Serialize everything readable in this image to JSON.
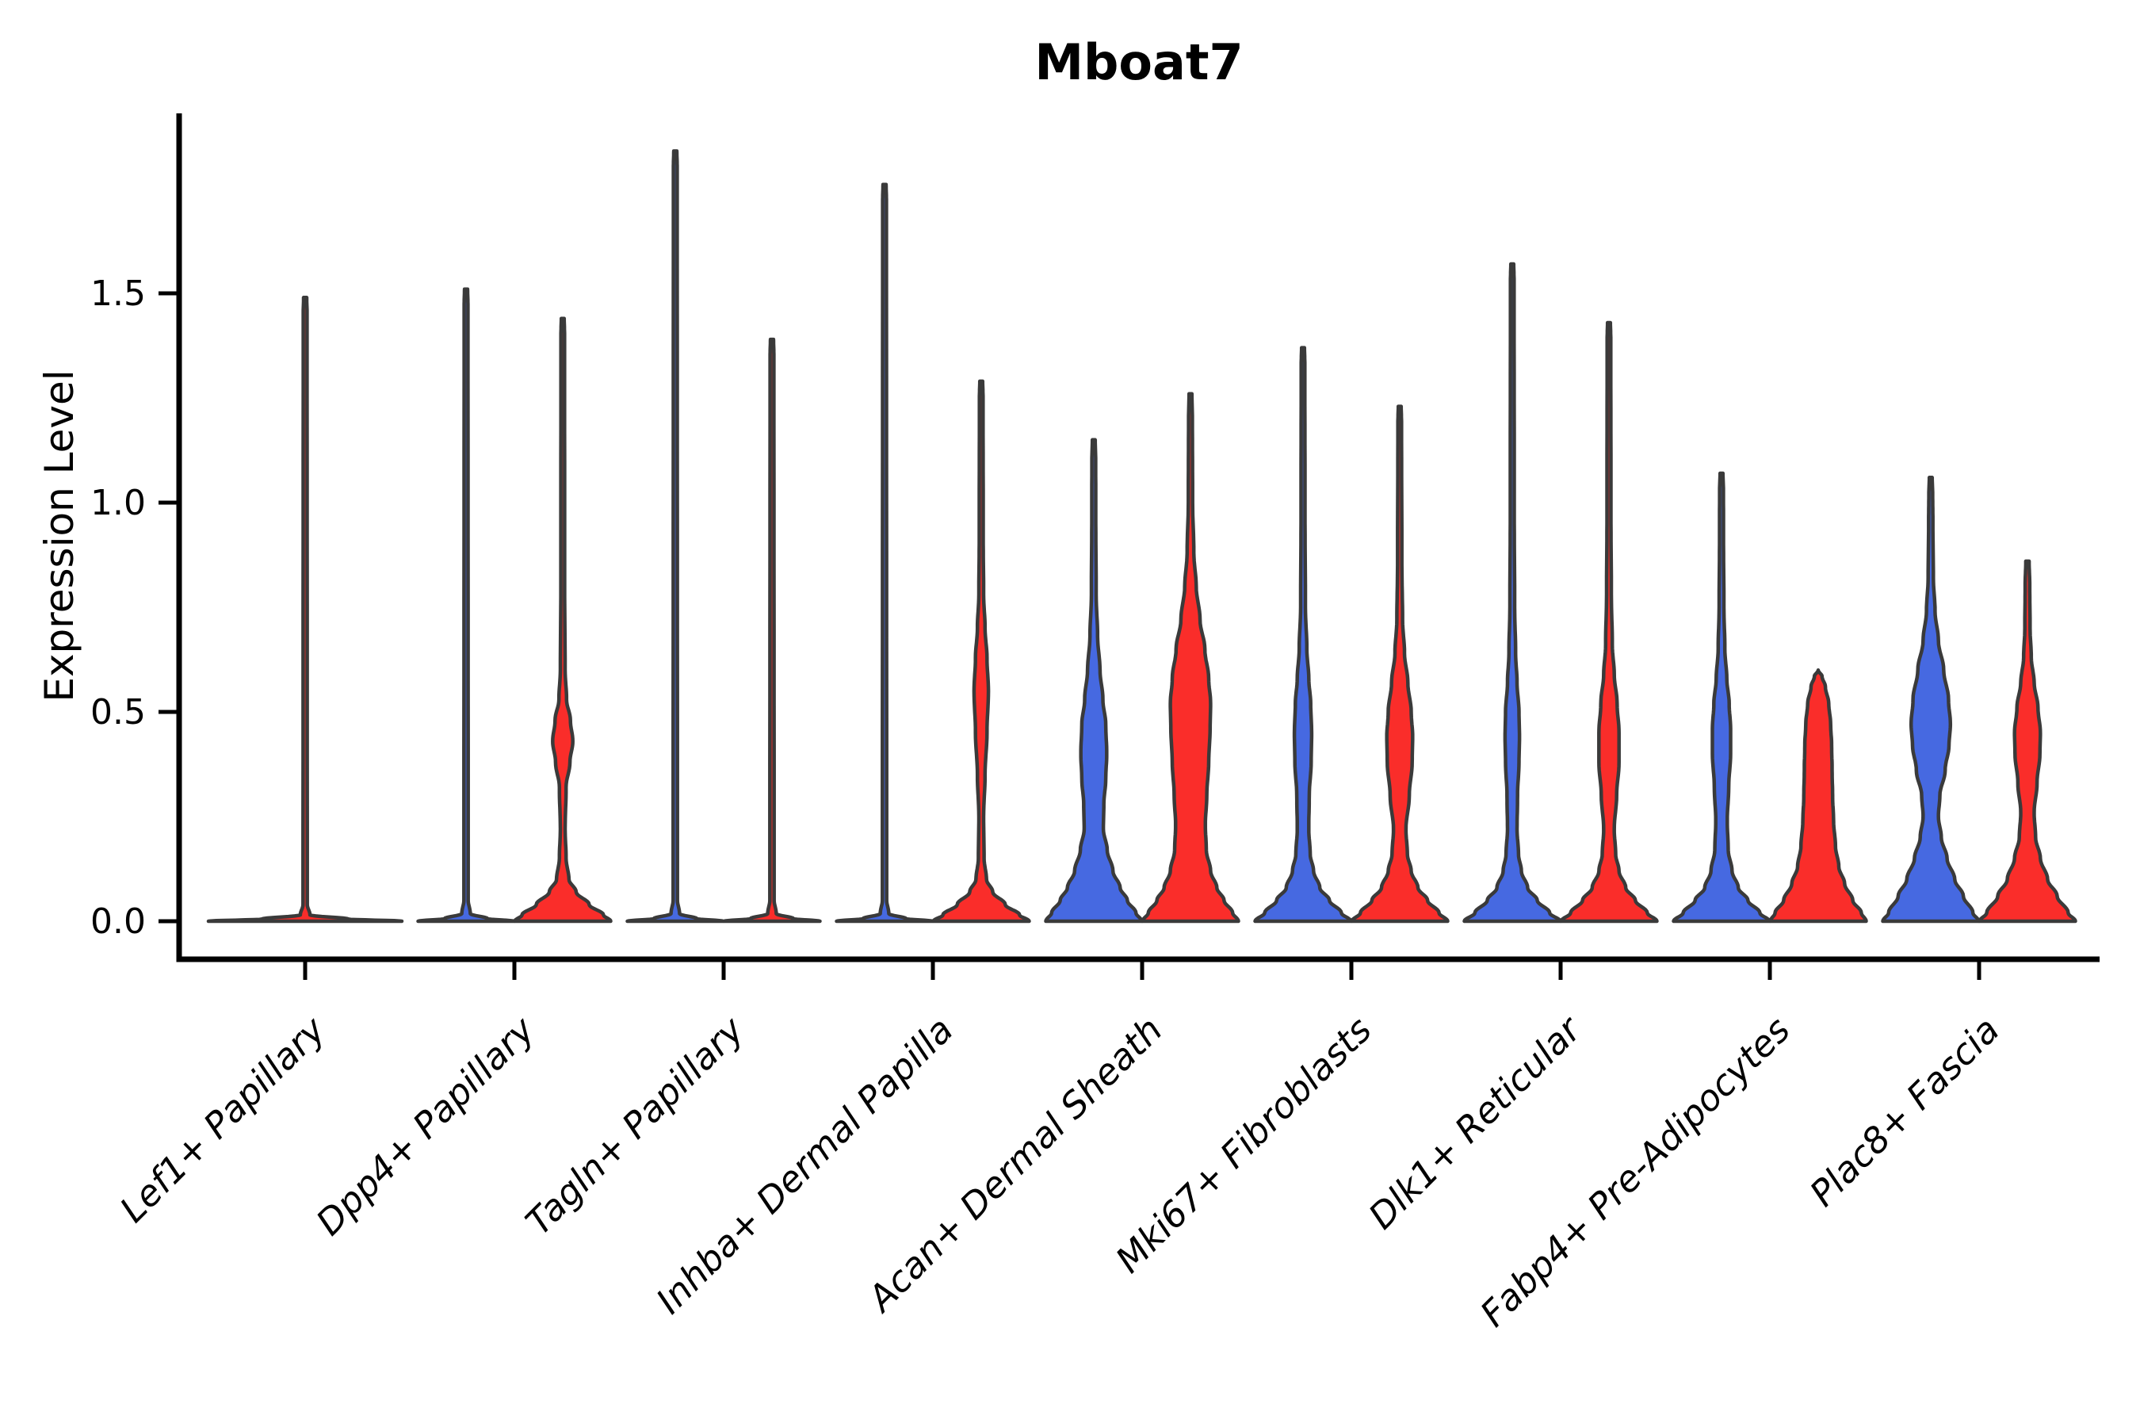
{
  "title": "Mboat7",
  "y_axis": {
    "label": "Expression Level"
  },
  "colors": {
    "blue": "#4669E1",
    "red": "#FA2D2A",
    "outline": "#3A3A3A",
    "axis": "#000000",
    "background": "#FFFFFF"
  },
  "chart_data": {
    "type": "violin",
    "title": "Mboat7",
    "xlabel": "",
    "ylabel": "Expression Level",
    "ylim": [
      0,
      1.93
    ],
    "yticks": [
      "0.0",
      "0.5",
      "1.0",
      "1.5"
    ],
    "ytick_values": [
      0.0,
      0.5,
      1.0,
      1.5
    ],
    "grid": false,
    "legend": "none",
    "split": "two violins per category (left=blue, right=red), dodged side by side",
    "categories": [
      "Lef1+ Papillary",
      "Dpp4+ Papillary",
      "Tagln+ Papillary",
      "Inhba+ Dermal Papilla",
      "Acan+ Dermal Sheath",
      "Mki67+ Fibroblasts",
      "Dlk1+ Reticular",
      "Fabp4+ Pre-Adipocytes",
      "Plac8+ Fascia"
    ],
    "violins": [
      {
        "category": "Lef1+ Papillary",
        "position": "full",
        "color_key": "red",
        "max_value": 1.49,
        "profile": [
          [
            0,
            1.0
          ],
          [
            0.005,
            0.45
          ],
          [
            0.015,
            0.05
          ],
          [
            0.04,
            0.022
          ],
          [
            1.45,
            0.02
          ],
          [
            1.49,
            0.016
          ]
        ]
      },
      {
        "category": "Dpp4+ Papillary",
        "position": "left",
        "color_key": "blue",
        "max_value": 1.51,
        "profile": [
          [
            0,
            1.0
          ],
          [
            0.006,
            0.45
          ],
          [
            0.018,
            0.09
          ],
          [
            0.05,
            0.045
          ],
          [
            1.47,
            0.04
          ],
          [
            1.51,
            0.032
          ]
        ]
      },
      {
        "category": "Dpp4+ Papillary",
        "position": "right",
        "color_key": "red",
        "max_value": 1.44,
        "profile": [
          [
            0,
            1.0
          ],
          [
            0.015,
            0.85
          ],
          [
            0.04,
            0.55
          ],
          [
            0.07,
            0.28
          ],
          [
            0.1,
            0.13
          ],
          [
            0.15,
            0.07
          ],
          [
            0.22,
            0.05
          ],
          [
            0.32,
            0.07
          ],
          [
            0.38,
            0.15
          ],
          [
            0.43,
            0.21
          ],
          [
            0.48,
            0.16
          ],
          [
            0.53,
            0.08
          ],
          [
            0.6,
            0.05
          ],
          [
            0.8,
            0.04
          ],
          [
            1.4,
            0.038
          ],
          [
            1.44,
            0.03
          ]
        ]
      },
      {
        "category": "Tagln+ Papillary",
        "position": "left",
        "color_key": "blue",
        "max_value": 1.84,
        "profile": [
          [
            0,
            1.0
          ],
          [
            0.006,
            0.45
          ],
          [
            0.018,
            0.09
          ],
          [
            0.05,
            0.045
          ],
          [
            1.8,
            0.04
          ],
          [
            1.84,
            0.032
          ]
        ]
      },
      {
        "category": "Tagln+ Papillary",
        "position": "right",
        "color_key": "red",
        "max_value": 1.39,
        "profile": [
          [
            0,
            1.0
          ],
          [
            0.006,
            0.45
          ],
          [
            0.018,
            0.09
          ],
          [
            0.05,
            0.045
          ],
          [
            1.35,
            0.04
          ],
          [
            1.39,
            0.032
          ]
        ]
      },
      {
        "category": "Inhba+ Dermal Papilla",
        "position": "left",
        "color_key": "blue",
        "max_value": 1.76,
        "profile": [
          [
            0,
            1.0
          ],
          [
            0.006,
            0.45
          ],
          [
            0.018,
            0.09
          ],
          [
            0.05,
            0.045
          ],
          [
            1.72,
            0.04
          ],
          [
            1.76,
            0.032
          ]
        ]
      },
      {
        "category": "Inhba+ Dermal Papilla",
        "position": "right",
        "color_key": "red",
        "max_value": 1.29,
        "profile": [
          [
            0,
            1.0
          ],
          [
            0.015,
            0.8
          ],
          [
            0.04,
            0.5
          ],
          [
            0.07,
            0.24
          ],
          [
            0.1,
            0.11
          ],
          [
            0.15,
            0.06
          ],
          [
            0.25,
            0.05
          ],
          [
            0.35,
            0.08
          ],
          [
            0.45,
            0.12
          ],
          [
            0.55,
            0.15
          ],
          [
            0.63,
            0.12
          ],
          [
            0.7,
            0.08
          ],
          [
            0.78,
            0.05
          ],
          [
            0.9,
            0.042
          ],
          [
            1.25,
            0.038
          ],
          [
            1.29,
            0.03
          ]
        ]
      },
      {
        "category": "Acan+ Dermal Sheath",
        "position": "left",
        "color_key": "blue",
        "max_value": 1.15,
        "profile": [
          [
            0,
            1.0
          ],
          [
            0.02,
            0.88
          ],
          [
            0.05,
            0.7
          ],
          [
            0.08,
            0.55
          ],
          [
            0.12,
            0.4
          ],
          [
            0.17,
            0.28
          ],
          [
            0.22,
            0.2
          ],
          [
            0.28,
            0.21
          ],
          [
            0.34,
            0.25
          ],
          [
            0.4,
            0.27
          ],
          [
            0.47,
            0.25
          ],
          [
            0.53,
            0.19
          ],
          [
            0.6,
            0.13
          ],
          [
            0.68,
            0.08
          ],
          [
            0.78,
            0.05
          ],
          [
            0.95,
            0.042
          ],
          [
            1.1,
            0.04
          ],
          [
            1.15,
            0.03
          ]
        ]
      },
      {
        "category": "Acan+ Dermal Sheath",
        "position": "right",
        "color_key": "red",
        "max_value": 1.26,
        "profile": [
          [
            0,
            1.0
          ],
          [
            0.02,
            0.88
          ],
          [
            0.05,
            0.7
          ],
          [
            0.08,
            0.55
          ],
          [
            0.12,
            0.42
          ],
          [
            0.17,
            0.33
          ],
          [
            0.23,
            0.31
          ],
          [
            0.3,
            0.34
          ],
          [
            0.38,
            0.38
          ],
          [
            0.46,
            0.41
          ],
          [
            0.52,
            0.42
          ],
          [
            0.58,
            0.38
          ],
          [
            0.65,
            0.3
          ],
          [
            0.72,
            0.2
          ],
          [
            0.8,
            0.12
          ],
          [
            0.88,
            0.07
          ],
          [
            1.0,
            0.045
          ],
          [
            1.2,
            0.04
          ],
          [
            1.26,
            0.03
          ]
        ]
      },
      {
        "category": "Mki67+ Fibroblasts",
        "position": "left",
        "color_key": "blue",
        "max_value": 1.37,
        "profile": [
          [
            0,
            1.0
          ],
          [
            0.02,
            0.8
          ],
          [
            0.05,
            0.55
          ],
          [
            0.08,
            0.35
          ],
          [
            0.12,
            0.22
          ],
          [
            0.16,
            0.15
          ],
          [
            0.22,
            0.12
          ],
          [
            0.3,
            0.13
          ],
          [
            0.38,
            0.17
          ],
          [
            0.45,
            0.18
          ],
          [
            0.52,
            0.16
          ],
          [
            0.58,
            0.12
          ],
          [
            0.65,
            0.08
          ],
          [
            0.75,
            0.05
          ],
          [
            0.95,
            0.042
          ],
          [
            1.33,
            0.038
          ],
          [
            1.37,
            0.03
          ]
        ]
      },
      {
        "category": "Mki67+ Fibroblasts",
        "position": "right",
        "color_key": "red",
        "max_value": 1.23,
        "profile": [
          [
            0,
            1.0
          ],
          [
            0.02,
            0.82
          ],
          [
            0.05,
            0.58
          ],
          [
            0.08,
            0.38
          ],
          [
            0.12,
            0.24
          ],
          [
            0.16,
            0.16
          ],
          [
            0.22,
            0.13
          ],
          [
            0.3,
            0.2
          ],
          [
            0.38,
            0.26
          ],
          [
            0.44,
            0.27
          ],
          [
            0.5,
            0.24
          ],
          [
            0.57,
            0.17
          ],
          [
            0.64,
            0.1
          ],
          [
            0.72,
            0.06
          ],
          [
            0.85,
            0.045
          ],
          [
            1.19,
            0.038
          ],
          [
            1.23,
            0.03
          ]
        ]
      },
      {
        "category": "Dlk1+ Reticular",
        "position": "left",
        "color_key": "blue",
        "max_value": 1.57,
        "profile": [
          [
            0,
            1.0
          ],
          [
            0.02,
            0.78
          ],
          [
            0.05,
            0.52
          ],
          [
            0.08,
            0.32
          ],
          [
            0.12,
            0.19
          ],
          [
            0.16,
            0.13
          ],
          [
            0.22,
            0.1
          ],
          [
            0.3,
            0.11
          ],
          [
            0.38,
            0.14
          ],
          [
            0.44,
            0.15
          ],
          [
            0.5,
            0.14
          ],
          [
            0.57,
            0.1
          ],
          [
            0.64,
            0.07
          ],
          [
            0.75,
            0.05
          ],
          [
            0.95,
            0.042
          ],
          [
            1.53,
            0.038
          ],
          [
            1.57,
            0.03
          ]
        ]
      },
      {
        "category": "Dlk1+ Reticular",
        "position": "right",
        "color_key": "red",
        "max_value": 1.43,
        "profile": [
          [
            0,
            1.0
          ],
          [
            0.02,
            0.8
          ],
          [
            0.05,
            0.55
          ],
          [
            0.08,
            0.35
          ],
          [
            0.12,
            0.21
          ],
          [
            0.16,
            0.14
          ],
          [
            0.22,
            0.11
          ],
          [
            0.3,
            0.16
          ],
          [
            0.38,
            0.21
          ],
          [
            0.45,
            0.21
          ],
          [
            0.52,
            0.17
          ],
          [
            0.59,
            0.11
          ],
          [
            0.66,
            0.07
          ],
          [
            0.78,
            0.05
          ],
          [
            0.95,
            0.042
          ],
          [
            1.39,
            0.038
          ],
          [
            1.43,
            0.03
          ]
        ]
      },
      {
        "category": "Fabp4+ Pre-Adipocytes",
        "position": "left",
        "color_key": "blue",
        "max_value": 1.07,
        "profile": [
          [
            0,
            1.0
          ],
          [
            0.02,
            0.8
          ],
          [
            0.05,
            0.55
          ],
          [
            0.08,
            0.35
          ],
          [
            0.12,
            0.22
          ],
          [
            0.17,
            0.14
          ],
          [
            0.24,
            0.12
          ],
          [
            0.32,
            0.15
          ],
          [
            0.4,
            0.19
          ],
          [
            0.46,
            0.19
          ],
          [
            0.52,
            0.16
          ],
          [
            0.58,
            0.11
          ],
          [
            0.65,
            0.07
          ],
          [
            0.75,
            0.05
          ],
          [
            0.9,
            0.042
          ],
          [
            1.03,
            0.04
          ],
          [
            1.07,
            0.03
          ]
        ]
      },
      {
        "category": "Fabp4+ Pre-Adipocytes",
        "position": "right",
        "color_key": "red",
        "max_value": 0.6,
        "profile": [
          [
            0,
            1.0
          ],
          [
            0.02,
            0.9
          ],
          [
            0.05,
            0.72
          ],
          [
            0.09,
            0.55
          ],
          [
            0.13,
            0.43
          ],
          [
            0.18,
            0.36
          ],
          [
            0.24,
            0.32
          ],
          [
            0.3,
            0.3
          ],
          [
            0.36,
            0.29
          ],
          [
            0.42,
            0.28
          ],
          [
            0.47,
            0.26
          ],
          [
            0.52,
            0.22
          ],
          [
            0.56,
            0.15
          ],
          [
            0.585,
            0.08
          ],
          [
            0.6,
            0.0
          ]
        ]
      },
      {
        "category": "Plac8+ Fascia",
        "position": "left",
        "color_key": "blue",
        "max_value": 1.06,
        "profile": [
          [
            0,
            1.0
          ],
          [
            0.02,
            0.88
          ],
          [
            0.06,
            0.68
          ],
          [
            0.1,
            0.5
          ],
          [
            0.15,
            0.34
          ],
          [
            0.2,
            0.22
          ],
          [
            0.25,
            0.16
          ],
          [
            0.3,
            0.19
          ],
          [
            0.36,
            0.3
          ],
          [
            0.42,
            0.38
          ],
          [
            0.47,
            0.41
          ],
          [
            0.53,
            0.37
          ],
          [
            0.6,
            0.27
          ],
          [
            0.67,
            0.16
          ],
          [
            0.74,
            0.09
          ],
          [
            0.82,
            0.055
          ],
          [
            0.95,
            0.045
          ],
          [
            1.02,
            0.04
          ],
          [
            1.06,
            0.03
          ]
        ]
      },
      {
        "category": "Plac8+ Fascia",
        "position": "right",
        "color_key": "red",
        "max_value": 0.86,
        "profile": [
          [
            0,
            1.0
          ],
          [
            0.02,
            0.85
          ],
          [
            0.06,
            0.62
          ],
          [
            0.1,
            0.42
          ],
          [
            0.15,
            0.27
          ],
          [
            0.2,
            0.17
          ],
          [
            0.26,
            0.14
          ],
          [
            0.33,
            0.2
          ],
          [
            0.4,
            0.26
          ],
          [
            0.45,
            0.27
          ],
          [
            0.51,
            0.22
          ],
          [
            0.57,
            0.14
          ],
          [
            0.63,
            0.08
          ],
          [
            0.7,
            0.055
          ],
          [
            0.8,
            0.048
          ],
          [
            0.86,
            0.035
          ]
        ]
      }
    ]
  }
}
